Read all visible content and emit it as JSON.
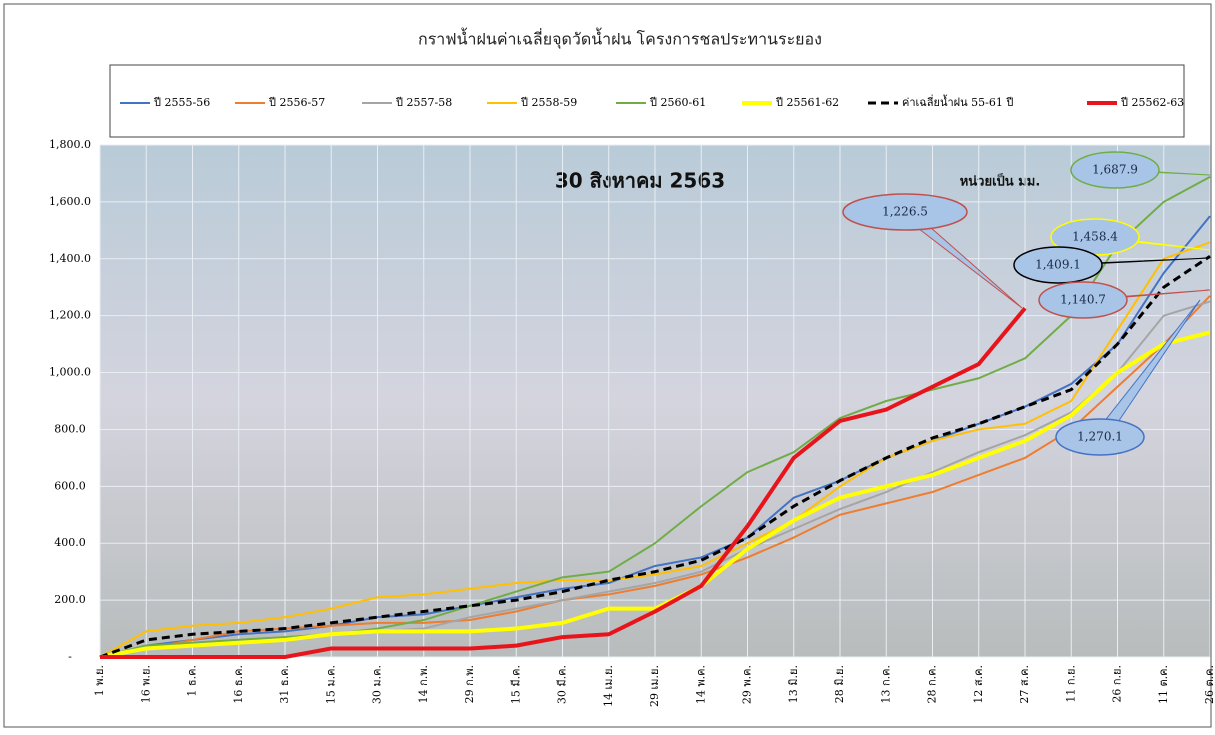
{
  "chart_data": {
    "type": "line",
    "title": "กราฟน้ำฝนค่าเฉลี่ยจุดวัดน้ำฝน โครงการชลประทานระยอง",
    "date_label": "30 สิงหาคม 2563",
    "unit_label": "หน่วยเป็น มม.",
    "categories": [
      "1 พ.ย.",
      "16 พ.ย.",
      "1 ธ.ค.",
      "16 ธ.ค.",
      "31 ธ.ค.",
      "15 ม.ค.",
      "30 ม.ค.",
      "14 ก.พ.",
      "29 ก.พ.",
      "15 มี.ค.",
      "30 มี.ค.",
      "14 เม.ย.",
      "29 เม.ย.",
      "14 พ.ค.",
      "29 พ.ค.",
      "13 มิ.ย.",
      "28 มิ.ย.",
      "13 ก.ค.",
      "28 ก.ค.",
      "12 ส.ค.",
      "27 ส.ค.",
      "11 ก.ย.",
      "26 ก.ย.",
      "11 ต.ค.",
      "26 ต.ค."
    ],
    "ylim": [
      0,
      1800
    ],
    "yticks": [
      {
        "value": 0,
        "label": "-"
      },
      {
        "value": 200,
        "label": "200.0"
      },
      {
        "value": 400,
        "label": "400.0"
      },
      {
        "value": 600,
        "label": "600.0"
      },
      {
        "value": 800,
        "label": "800.0"
      },
      {
        "value": 1000,
        "label": "1,000.0"
      },
      {
        "value": 1200,
        "label": "1,200.0"
      },
      {
        "value": 1400,
        "label": "1,400.0"
      },
      {
        "value": 1600,
        "label": "1,600.0"
      },
      {
        "value": 1800,
        "label": "1,800.0"
      }
    ],
    "grid": true,
    "series": [
      {
        "name": "ปี 2555-56",
        "color": "#4472c4",
        "line_width": 2,
        "values": [
          0,
          40,
          60,
          80,
          90,
          110,
          140,
          150,
          180,
          210,
          240,
          260,
          320,
          350,
          420,
          560,
          620,
          700,
          760,
          820,
          880,
          960,
          1100,
          1350,
          1550
        ]
      },
      {
        "name": "ปี 2556-57",
        "color": "#ed7d31",
        "line_width": 2,
        "values": [
          0,
          30,
          60,
          90,
          100,
          110,
          120,
          120,
          130,
          160,
          200,
          220,
          250,
          290,
          350,
          420,
          500,
          540,
          580,
          640,
          700,
          800,
          950,
          1100,
          1270
        ]
      },
      {
        "name": "ปี 2557-58",
        "color": "#a5a5a5",
        "line_width": 2,
        "values": [
          0,
          30,
          50,
          60,
          70,
          80,
          90,
          100,
          140,
          170,
          200,
          230,
          260,
          300,
          380,
          450,
          520,
          580,
          650,
          720,
          780,
          860,
          1000,
          1200,
          1250
        ]
      },
      {
        "name": "ปี 2558-59",
        "color": "#ffc000",
        "line_width": 2,
        "values": [
          0,
          90,
          110,
          120,
          140,
          170,
          210,
          220,
          240,
          260,
          270,
          270,
          290,
          320,
          400,
          480,
          600,
          700,
          760,
          800,
          820,
          900,
          1150,
          1400,
          1458
        ]
      },
      {
        "name": "ปี 2560-61",
        "color": "#70ad47",
        "line_width": 2,
        "values": [
          0,
          40,
          50,
          60,
          70,
          80,
          100,
          130,
          180,
          230,
          280,
          300,
          400,
          530,
          650,
          720,
          840,
          900,
          940,
          980,
          1050,
          1200,
          1450,
          1600,
          1688
        ]
      },
      {
        "name": "ปี 25561-62",
        "color": "#ffff00",
        "line_width": 4,
        "values": [
          0,
          30,
          40,
          50,
          60,
          80,
          90,
          90,
          90,
          100,
          120,
          170,
          170,
          250,
          380,
          480,
          560,
          600,
          640,
          700,
          760,
          850,
          1000,
          1100,
          1141
        ]
      },
      {
        "name": "ค่าเฉลี่ยน้ำฝน 55-61 ปี",
        "color": "#000000",
        "line_width": 3,
        "dashed": true,
        "values": [
          0,
          60,
          80,
          90,
          100,
          120,
          140,
          160,
          180,
          200,
          230,
          270,
          300,
          340,
          420,
          530,
          620,
          700,
          770,
          820,
          880,
          940,
          1100,
          1300,
          1409
        ]
      },
      {
        "name": "ปี 25562-63",
        "color": "#e8141c",
        "line_width": 4,
        "values": [
          0,
          0,
          0,
          0,
          0,
          30,
          30,
          30,
          30,
          40,
          70,
          80,
          160,
          250,
          460,
          700,
          830,
          870,
          950,
          1030,
          1226,
          null,
          null,
          null,
          null
        ]
      }
    ],
    "annotations": [
      {
        "text": "1,226.5",
        "color": "#c0504d"
      },
      {
        "text": "1,687.9",
        "color": "#70ad47"
      },
      {
        "text": "1,458.4",
        "color": "#ffff00"
      },
      {
        "text": "1,409.1",
        "color": "#000000"
      },
      {
        "text": "1,140.7",
        "color": "#c0504d"
      },
      {
        "text": "1,270.1",
        "color": "#4472c4"
      }
    ]
  }
}
